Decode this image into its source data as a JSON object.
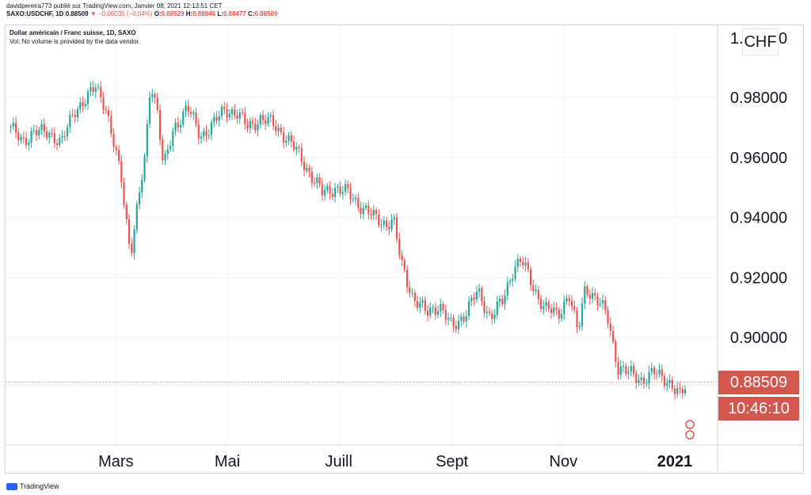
{
  "header": {
    "published_line": "davidpereira773 publié sur TradingView.com, Janvier 08, 2021 12:13:51 CET",
    "symbol": "SAXO:USDCHF, 1D",
    "last": "0.88509",
    "change_arrow": "▼",
    "change": "−0.00035 (−0.04%)",
    "o_label": "O:",
    "o_value": "0.88529",
    "h_label": "H:",
    "h_value": "0.88846",
    "l_label": "L:",
    "l_value": "0.88477",
    "c_label": "C:",
    "c_value": "0.88509"
  },
  "legend": {
    "title": "Dollar américain / Franc suisse, 1D, SAXO",
    "volume_note": "Vol: No volume is provided by the data vendor."
  },
  "price_axis": {
    "top_label": "1.",
    "top_label_tail": "0",
    "currency": "CHF",
    "current_price": "0.88509",
    "countdown": "10:46:10"
  },
  "footer": {
    "brand": "TradingView"
  },
  "colors": {
    "up": "#26a69a",
    "down": "#ef5350",
    "label_bg": "#d3574f",
    "grid": "#f0f3fa"
  },
  "chart_data": {
    "type": "candlestick",
    "title": "Dollar américain / Franc suisse, 1D, SAXO",
    "xlabel": "",
    "ylabel": "",
    "ylim": [
      0.872,
      1.0
    ],
    "x_ticks": [
      "Mars",
      "Mai",
      "Juill",
      "Sept",
      "Nov",
      "2021"
    ],
    "y_ticks": [
      "0.98000",
      "0.96000",
      "0.94000",
      "0.92000",
      "0.90000"
    ],
    "y_tick_values": [
      0.98,
      0.96,
      0.94,
      0.92,
      0.9
    ],
    "grid": true,
    "last_price_line": 0.88509,
    "close_path": [
      [
        "2020-01-02",
        0.97
      ],
      [
        "2020-01-10",
        0.966
      ],
      [
        "2020-01-17",
        0.968
      ],
      [
        "2020-01-24",
        0.969
      ],
      [
        "2020-01-31",
        0.964
      ],
      [
        "2020-02-07",
        0.976
      ],
      [
        "2020-02-14",
        0.979
      ],
      [
        "2020-02-19",
        0.984
      ],
      [
        "2020-02-24",
        0.978
      ],
      [
        "2020-02-28",
        0.966
      ],
      [
        "2020-03-04",
        0.953
      ],
      [
        "2020-03-09",
        0.928
      ],
      [
        "2020-03-12",
        0.94
      ],
      [
        "2020-03-17",
        0.96
      ],
      [
        "2020-03-20",
        0.986
      ],
      [
        "2020-03-24",
        0.975
      ],
      [
        "2020-03-27",
        0.956
      ],
      [
        "2020-04-02",
        0.97
      ],
      [
        "2020-04-09",
        0.977
      ],
      [
        "2020-04-16",
        0.967
      ],
      [
        "2020-04-23",
        0.971
      ],
      [
        "2020-04-30",
        0.976
      ],
      [
        "2020-05-06",
        0.975
      ],
      [
        "2020-05-12",
        0.97
      ],
      [
        "2020-05-19",
        0.973
      ],
      [
        "2020-05-26",
        0.971
      ],
      [
        "2020-06-02",
        0.967
      ],
      [
        "2020-06-09",
        0.961
      ],
      [
        "2020-06-15",
        0.955
      ],
      [
        "2020-06-22",
        0.948
      ],
      [
        "2020-06-29",
        0.95
      ],
      [
        "2020-07-06",
        0.948
      ],
      [
        "2020-07-13",
        0.944
      ],
      [
        "2020-07-20",
        0.94
      ],
      [
        "2020-07-27",
        0.938
      ],
      [
        "2020-07-31",
        0.939
      ],
      [
        "2020-08-04",
        0.925
      ],
      [
        "2020-08-11",
        0.913
      ],
      [
        "2020-08-18",
        0.908
      ],
      [
        "2020-08-25",
        0.911
      ],
      [
        "2020-09-01",
        0.903
      ],
      [
        "2020-09-08",
        0.908
      ],
      [
        "2020-09-15",
        0.915
      ],
      [
        "2020-09-22",
        0.907
      ],
      [
        "2020-09-29",
        0.912
      ],
      [
        "2020-10-05",
        0.924
      ],
      [
        "2020-10-09",
        0.926
      ],
      [
        "2020-10-15",
        0.917
      ],
      [
        "2020-10-22",
        0.91
      ],
      [
        "2020-10-29",
        0.907
      ],
      [
        "2020-11-04",
        0.915
      ],
      [
        "2020-11-09",
        0.901
      ],
      [
        "2020-11-13",
        0.917
      ],
      [
        "2020-11-19",
        0.913
      ],
      [
        "2020-11-25",
        0.907
      ],
      [
        "2020-12-01",
        0.89
      ],
      [
        "2020-12-07",
        0.888
      ],
      [
        "2020-12-14",
        0.886
      ],
      [
        "2020-12-21",
        0.888
      ],
      [
        "2020-12-28",
        0.886
      ],
      [
        "2021-01-04",
        0.88
      ],
      [
        "2021-01-08",
        0.88509
      ]
    ]
  }
}
